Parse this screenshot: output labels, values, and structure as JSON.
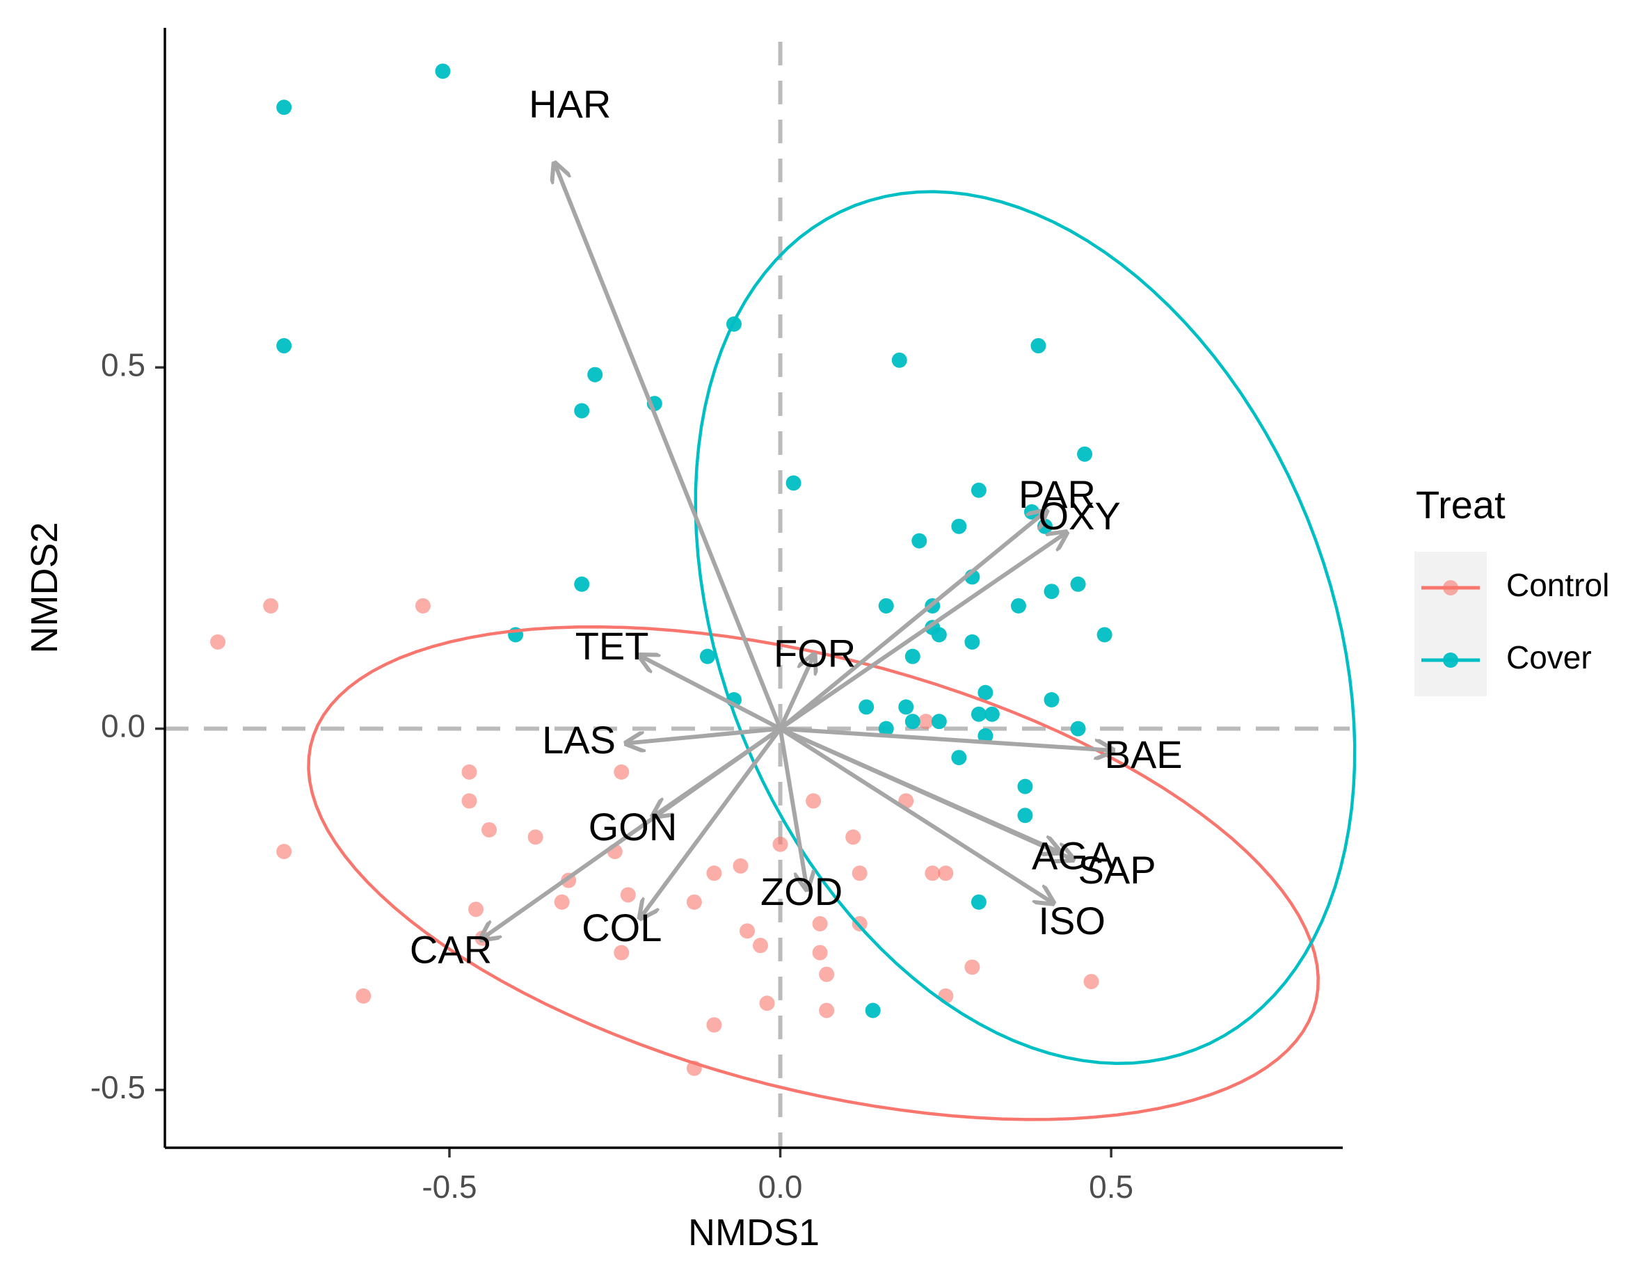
{
  "chart_data": {
    "type": "scatter",
    "subtype": "NMDS ordination biplot with species vectors and group ellipses",
    "xlabel": "NMDS1",
    "ylabel": "NMDS2",
    "xlim": [
      -0.93,
      0.85
    ],
    "ylim": [
      -0.58,
      0.97
    ],
    "x_ticks": [
      {
        "value": -0.5,
        "label": "-0.5"
      },
      {
        "value": 0.0,
        "label": "0.0"
      },
      {
        "value": 0.5,
        "label": "0.5"
      }
    ],
    "y_ticks": [
      {
        "value": -0.5,
        "label": "-0.5"
      },
      {
        "value": 0.0,
        "label": "0.0"
      },
      {
        "value": 0.5,
        "label": "0.5"
      }
    ],
    "grid": false,
    "reference_lines": {
      "x": 0,
      "y": 0,
      "style": "dashed",
      "color": "#bbbbbb"
    },
    "legend": {
      "title": "Treat",
      "placement": "right",
      "entries": [
        {
          "label": "Control",
          "color": "#F8766D"
        },
        {
          "label": "Cover",
          "color": "#00BFC4"
        }
      ]
    },
    "colors": {
      "Control": "#F8766D",
      "Cover": "#00BFC4",
      "arrow": "#a6a6a6",
      "axis": "#000000",
      "tick_label": "#4d4d4d"
    },
    "series": [
      {
        "name": "Control",
        "color": "#F8766D",
        "points": [
          [
            -0.85,
            0.12
          ],
          [
            -0.77,
            0.17
          ],
          [
            -0.54,
            0.17
          ],
          [
            -0.75,
            -0.17
          ],
          [
            -0.63,
            -0.37
          ],
          [
            -0.47,
            -0.06
          ],
          [
            -0.47,
            -0.1
          ],
          [
            -0.44,
            -0.14
          ],
          [
            -0.37,
            -0.15
          ],
          [
            -0.46,
            -0.25
          ],
          [
            -0.45,
            -0.29
          ],
          [
            -0.32,
            -0.21
          ],
          [
            -0.33,
            -0.24
          ],
          [
            -0.24,
            -0.06
          ],
          [
            -0.25,
            -0.17
          ],
          [
            -0.23,
            -0.23
          ],
          [
            -0.24,
            -0.31
          ],
          [
            -0.1,
            -0.2
          ],
          [
            -0.13,
            -0.24
          ],
          [
            -0.06,
            -0.19
          ],
          [
            -0.05,
            -0.28
          ],
          [
            -0.03,
            -0.3
          ],
          [
            0.0,
            -0.16
          ],
          [
            0.05,
            -0.1
          ],
          [
            0.06,
            -0.27
          ],
          [
            0.11,
            -0.15
          ],
          [
            0.12,
            -0.2
          ],
          [
            0.12,
            -0.27
          ],
          [
            0.06,
            -0.31
          ],
          [
            0.07,
            -0.34
          ],
          [
            -0.02,
            -0.38
          ],
          [
            0.07,
            -0.39
          ],
          [
            -0.1,
            -0.41
          ],
          [
            -0.13,
            -0.47
          ],
          [
            0.19,
            -0.1
          ],
          [
            0.22,
            0.01
          ],
          [
            0.23,
            -0.2
          ],
          [
            0.25,
            -0.2
          ],
          [
            0.29,
            -0.33
          ],
          [
            0.25,
            -0.37
          ],
          [
            0.47,
            -0.35
          ]
        ]
      },
      {
        "name": "Cover",
        "color": "#00BFC4",
        "points": [
          [
            -0.51,
            0.91
          ],
          [
            -0.75,
            0.86
          ],
          [
            -0.75,
            0.53
          ],
          [
            -0.3,
            0.44
          ],
          [
            -0.28,
            0.49
          ],
          [
            -0.19,
            0.45
          ],
          [
            -0.07,
            0.56
          ],
          [
            0.18,
            0.51
          ],
          [
            0.39,
            0.53
          ],
          [
            0.46,
            0.38
          ],
          [
            0.02,
            0.34
          ],
          [
            0.3,
            0.33
          ],
          [
            0.38,
            0.3
          ],
          [
            0.4,
            0.28
          ],
          [
            0.27,
            0.28
          ],
          [
            0.21,
            0.26
          ],
          [
            0.29,
            0.21
          ],
          [
            0.16,
            0.17
          ],
          [
            0.23,
            0.17
          ],
          [
            0.36,
            0.17
          ],
          [
            0.41,
            0.19
          ],
          [
            0.45,
            0.2
          ],
          [
            0.23,
            0.14
          ],
          [
            0.24,
            0.13
          ],
          [
            0.29,
            0.12
          ],
          [
            0.49,
            0.13
          ],
          [
            -0.3,
            0.2
          ],
          [
            -0.4,
            0.13
          ],
          [
            -0.11,
            0.1
          ],
          [
            -0.07,
            0.04
          ],
          [
            0.2,
            0.1
          ],
          [
            0.13,
            0.03
          ],
          [
            0.19,
            0.03
          ],
          [
            0.2,
            0.01
          ],
          [
            0.24,
            0.01
          ],
          [
            0.31,
            0.05
          ],
          [
            0.3,
            0.02
          ],
          [
            0.32,
            0.02
          ],
          [
            0.41,
            0.04
          ],
          [
            0.45,
            0.0
          ],
          [
            0.16,
            0.0
          ],
          [
            0.31,
            -0.01
          ],
          [
            0.27,
            -0.04
          ],
          [
            0.37,
            -0.08
          ],
          [
            0.37,
            -0.12
          ],
          [
            0.3,
            -0.24
          ],
          [
            0.14,
            -0.39
          ]
        ]
      }
    ],
    "ellipses": [
      {
        "group": "Control",
        "color": "#F8766D",
        "center": [
          0.05,
          -0.2
        ],
        "semi_axes": [
          0.78,
          0.3
        ],
        "rotation_deg": -13
      },
      {
        "group": "Cover",
        "color": "#00BFC4",
        "center": [
          0.37,
          0.14
        ],
        "semi_axes": [
          0.64,
          0.45
        ],
        "rotation_deg": -62
      }
    ],
    "vectors": [
      {
        "label": "HAR",
        "x": -0.34,
        "y": 0.78,
        "label_x": -0.38,
        "label_y": 0.86,
        "label_anchor": "start"
      },
      {
        "label": "PAR",
        "x": 0.4,
        "y": 0.3,
        "label_x": 0.36,
        "label_y": 0.32,
        "label_anchor": "start"
      },
      {
        "label": "OXY",
        "x": 0.43,
        "y": 0.27,
        "label_x": 0.39,
        "label_y": 0.29,
        "label_anchor": "start"
      },
      {
        "label": "TET",
        "x": -0.21,
        "y": 0.1,
        "label_x": -0.31,
        "label_y": 0.11,
        "label_anchor": "start"
      },
      {
        "label": "FOR",
        "x": 0.05,
        "y": 0.1,
        "label_x": -0.01,
        "label_y": 0.1,
        "label_anchor": "start"
      },
      {
        "label": "LAS",
        "x": -0.23,
        "y": -0.02,
        "label_x": -0.36,
        "label_y": -0.02,
        "label_anchor": "start"
      },
      {
        "label": "BAE",
        "x": 0.5,
        "y": -0.03,
        "label_x": 0.49,
        "label_y": -0.04,
        "label_anchor": "start"
      },
      {
        "label": "GON",
        "x": -0.19,
        "y": -0.12,
        "label_x": -0.29,
        "label_y": -0.14,
        "label_anchor": "start"
      },
      {
        "label": "AGA",
        "x": 0.42,
        "y": -0.17,
        "label_x": 0.38,
        "label_y": -0.18,
        "label_anchor": "start"
      },
      {
        "label": "SAP",
        "x": 0.44,
        "y": -0.18,
        "label_x": 0.45,
        "label_y": -0.2,
        "label_anchor": "start"
      },
      {
        "label": "ISO",
        "x": 0.41,
        "y": -0.24,
        "label_x": 0.39,
        "label_y": -0.27,
        "label_anchor": "start"
      },
      {
        "label": "ZOD",
        "x": 0.04,
        "y": -0.22,
        "label_x": -0.03,
        "label_y": -0.23,
        "label_anchor": "start"
      },
      {
        "label": "COL",
        "x": -0.21,
        "y": -0.26,
        "label_x": -0.3,
        "label_y": -0.28,
        "label_anchor": "start"
      },
      {
        "label": "CAR",
        "x": -0.45,
        "y": -0.29,
        "label_x": -0.56,
        "label_y": -0.31,
        "label_anchor": "start"
      }
    ]
  }
}
